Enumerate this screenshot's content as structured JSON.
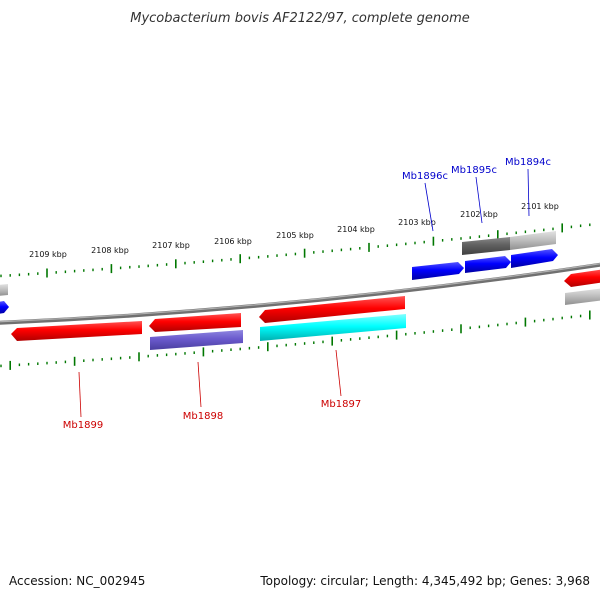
{
  "title": "Mycobacterium bovis AF2122/97, complete genome",
  "footer": {
    "accession": "Accession: NC_002945",
    "summary": "Topology: circular; Length: 4,345,492 bp; Genes: 3,968"
  },
  "scale": {
    "tick_labels": [
      "2109 kbp",
      "2108 kbp",
      "2107 kbp",
      "2106 kbp",
      "2105 kbp",
      "2104 kbp",
      "2103 kbp",
      "2102 kbp",
      "2101 kbp"
    ]
  },
  "genes": {
    "forward_labels": [
      "Mb1896c",
      "Mb1895c",
      "Mb1894c"
    ],
    "reverse_labels": [
      "Mb1899",
      "Mb1898",
      "Mb1897"
    ]
  },
  "colors": {
    "cds": "#ff0000",
    "forward_gene": "#0000ff",
    "reverse_gene_1": "#6a5acd",
    "reverse_gene_2": "#00ffff",
    "other_feature": "#c0c0c0",
    "ticks": "#007700",
    "backbone": "#808080"
  }
}
